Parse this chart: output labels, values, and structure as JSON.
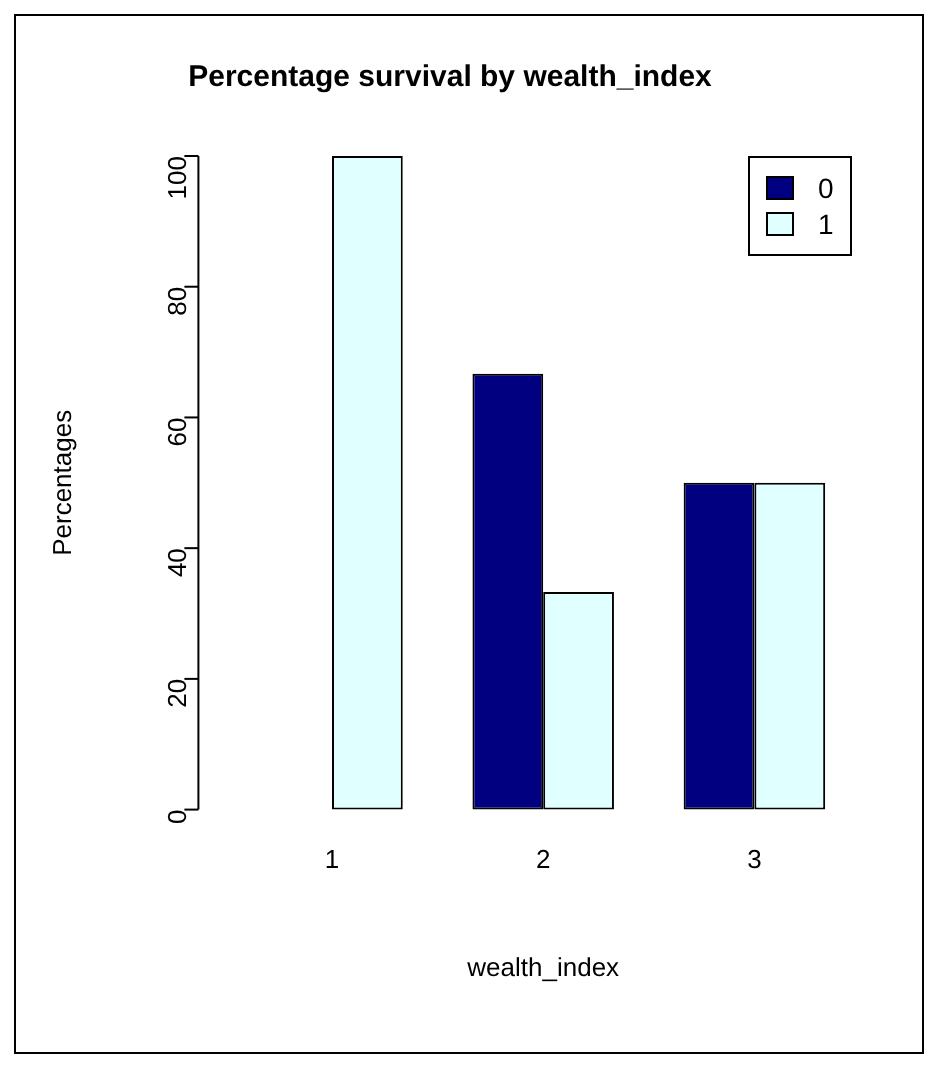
{
  "chart_data": {
    "type": "bar",
    "title": "Percentage survival by wealth_index",
    "xlabel": "wealth_index",
    "ylabel": "Percentages",
    "categories": [
      "1",
      "2",
      "3"
    ],
    "series": [
      {
        "name": "0",
        "color": "#000080",
        "values": [
          0,
          66.7,
          50
        ]
      },
      {
        "name": "1",
        "color": "#e0ffff",
        "values": [
          100,
          33.3,
          50
        ]
      }
    ],
    "ylim": [
      0,
      100
    ],
    "yticks": [
      0,
      20,
      40,
      60,
      80,
      100
    ],
    "grid": false,
    "legend": "top right"
  }
}
